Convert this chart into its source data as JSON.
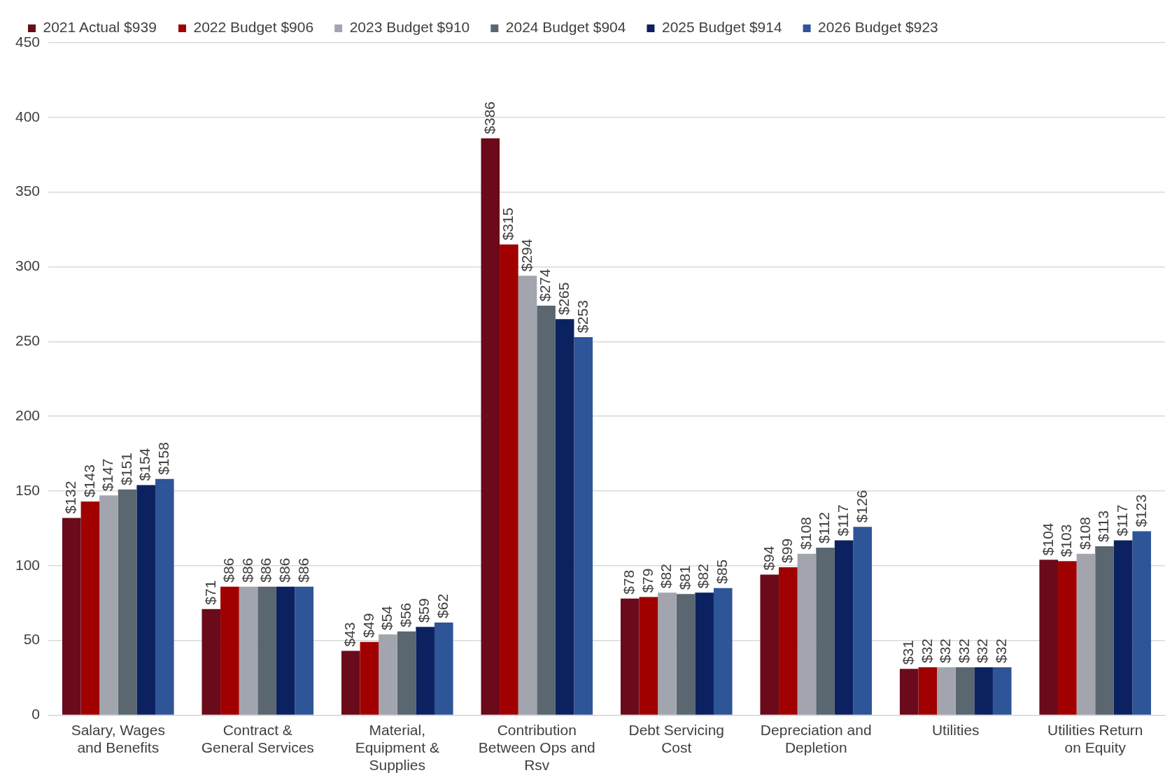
{
  "chart_data": {
    "type": "bar",
    "categories": [
      "Salary, Wages and Benefits",
      "Contract & General Services",
      "Material, Equipment & Supplies",
      "Contribution Between Ops and Rsv",
      "Debt Servicing Cost",
      "Depreciation and Depletion",
      "Utilities",
      "Utilities Return on Equity"
    ],
    "series": [
      {
        "name": "2021 Actual $939",
        "color": "#6a0a1a",
        "values": [
          132,
          71,
          43,
          386,
          78,
          94,
          31,
          104
        ],
        "value_labels": [
          "$132",
          "$71",
          "$43",
          "$386",
          "$78",
          "$94",
          "$31",
          "$104"
        ]
      },
      {
        "name": "2022 Budget $906",
        "color": "#a00000",
        "values": [
          143,
          86,
          49,
          315,
          79,
          99,
          32,
          103
        ],
        "value_labels": [
          "$143",
          "$86",
          "$49",
          "$315",
          "$79",
          "$99",
          "$32",
          "$103"
        ]
      },
      {
        "name": "2023 Budget $910",
        "color": "#a2a5ad",
        "values": [
          147,
          86,
          54,
          294,
          82,
          108,
          32,
          108
        ],
        "value_labels": [
          "$147",
          "$86",
          "$54",
          "$294",
          "$82",
          "$108",
          "$32",
          "$108"
        ]
      },
      {
        "name": "2024 Budget $904",
        "color": "#5a6670",
        "values": [
          151,
          86,
          56,
          274,
          81,
          112,
          32,
          113
        ],
        "value_labels": [
          "$151",
          "$86",
          "$56",
          "$274",
          "$81",
          "$112",
          "$32",
          "$113"
        ]
      },
      {
        "name": "2025 Budget $914",
        "color": "#0c2260",
        "values": [
          154,
          86,
          59,
          265,
          82,
          117,
          32,
          117
        ],
        "value_labels": [
          "$154",
          "$86",
          "$59",
          "$265",
          "$82",
          "$117",
          "$32",
          "$117"
        ]
      },
      {
        "name": "2026 Budget $923",
        "color": "#2e5597",
        "values": [
          158,
          86,
          62,
          253,
          85,
          126,
          32,
          123
        ],
        "value_labels": [
          "$158",
          "$86",
          "$62",
          "$253",
          "$85",
          "$126",
          "$32",
          "$123"
        ]
      }
    ],
    "ylim": [
      0,
      450
    ],
    "yticks": [
      0,
      50,
      100,
      150,
      200,
      250,
      300,
      350,
      400,
      450
    ],
    "grid": "y",
    "legend": "top left"
  }
}
